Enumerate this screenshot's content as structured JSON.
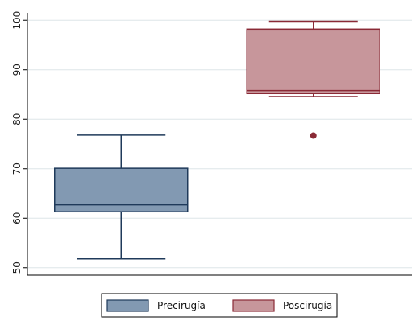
{
  "chart_data": {
    "type": "boxplot",
    "title": "",
    "xlabel": "",
    "ylabel": "",
    "ylim": [
      48.5,
      101.5
    ],
    "yticks": [
      50,
      60,
      70,
      80,
      90,
      100
    ],
    "ytick_labels": [
      "50",
      "60",
      "70",
      "80",
      "90",
      "100"
    ],
    "grid": true,
    "legend_position": "bottom-center",
    "series": [
      {
        "name": "Precirugía",
        "color": "#8299b2",
        "edge_color": "#1f3a5a",
        "min": 51.8,
        "q1": 61.3,
        "median": 62.7,
        "q3": 70.1,
        "max": 76.8,
        "outliers": []
      },
      {
        "name": "Poscirugía",
        "color": "#c7969b",
        "edge_color": "#8a2a36",
        "min": 84.6,
        "q1": 85.2,
        "median": 85.8,
        "q3": 98.2,
        "max": 99.8,
        "outliers": [
          76.7
        ]
      }
    ]
  }
}
